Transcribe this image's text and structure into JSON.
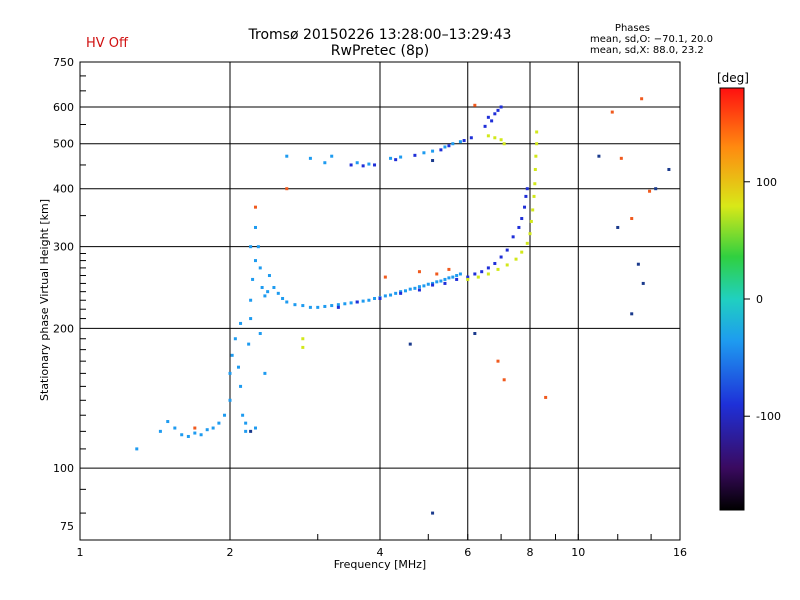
{
  "status": {
    "text": "HV Off",
    "color": "#d01010"
  },
  "header": {
    "title_line1": "Tromsø 20150226 13:28:00–13:29:43",
    "title_line2": "RwPretec (8p)"
  },
  "phases_box": {
    "heading": "Phases",
    "line_o": "mean, sd,O: −70.1, 20.0",
    "line_x": "mean, sd,X:  88.0, 23.2"
  },
  "chart_data": {
    "type": "scatter",
    "xlabel": "Frequency [MHz]",
    "ylabel": "Stationary phase Virtual Height [km]",
    "x_scale": "log",
    "y_scale": "log",
    "xlim": [
      1,
      16
    ],
    "ylim": [
      70,
      750
    ],
    "x_ticks": [
      1,
      2,
      4,
      6,
      8,
      10,
      16
    ],
    "x_tick_labels": [
      "1",
      "2",
      "4",
      "6",
      "8",
      "10",
      "16"
    ],
    "y_ticks": [
      75,
      100,
      200,
      300,
      400,
      500,
      600,
      750
    ],
    "y_tick_labels": [
      "75",
      "100",
      "200",
      "300",
      "400",
      "500",
      "600",
      "750"
    ],
    "grid": true,
    "colorbar": {
      "label": "[deg]",
      "range": [
        -180,
        180
      ],
      "ticks": [
        100,
        0,
        -100
      ],
      "tick_labels": [
        "100",
        "0",
        "-100"
      ]
    },
    "series": [
      {
        "color": "#1e9bf0",
        "points": [
          [
            1.45,
            120
          ],
          [
            1.5,
            126
          ],
          [
            1.55,
            122
          ],
          [
            1.6,
            118
          ],
          [
            1.65,
            117
          ],
          [
            1.7,
            119
          ],
          [
            1.75,
            118
          ],
          [
            1.8,
            121
          ],
          [
            1.85,
            122
          ],
          [
            1.9,
            125
          ],
          [
            1.95,
            130
          ],
          [
            2.0,
            140
          ],
          [
            2.0,
            160
          ],
          [
            2.02,
            175
          ],
          [
            2.05,
            190
          ],
          [
            2.08,
            165
          ],
          [
            2.1,
            150
          ],
          [
            2.12,
            130
          ],
          [
            2.15,
            120
          ],
          [
            2.18,
            185
          ],
          [
            2.2,
            210
          ],
          [
            2.2,
            230
          ],
          [
            2.22,
            255
          ],
          [
            2.25,
            280
          ],
          [
            2.28,
            300
          ],
          [
            2.3,
            270
          ],
          [
            2.32,
            245
          ],
          [
            2.35,
            235
          ],
          [
            2.38,
            240
          ],
          [
            2.4,
            260
          ],
          [
            2.45,
            245
          ],
          [
            2.5,
            238
          ],
          [
            2.55,
            232
          ],
          [
            2.6,
            228
          ],
          [
            2.7,
            225
          ],
          [
            2.8,
            224
          ],
          [
            2.9,
            222
          ],
          [
            3.0,
            222
          ],
          [
            3.1,
            223
          ],
          [
            3.2,
            224
          ],
          [
            3.3,
            225
          ],
          [
            3.4,
            226
          ],
          [
            3.5,
            227
          ],
          [
            3.6,
            228
          ],
          [
            3.7,
            229
          ],
          [
            3.8,
            230
          ],
          [
            3.9,
            232
          ],
          [
            4.0,
            233
          ],
          [
            4.1,
            235
          ],
          [
            4.2,
            236
          ],
          [
            4.3,
            238
          ],
          [
            4.4,
            240
          ],
          [
            4.5,
            241
          ],
          [
            4.6,
            243
          ],
          [
            4.7,
            244
          ],
          [
            4.8,
            246
          ],
          [
            4.9,
            247
          ],
          [
            5.0,
            249
          ],
          [
            5.1,
            250
          ],
          [
            5.2,
            252
          ],
          [
            5.3,
            253
          ],
          [
            5.4,
            255
          ],
          [
            5.5,
            257
          ],
          [
            5.6,
            258
          ],
          [
            5.7,
            260
          ],
          [
            5.8,
            262
          ],
          [
            2.15,
            125
          ],
          [
            2.25,
            122
          ],
          [
            2.3,
            195
          ],
          [
            2.35,
            160
          ],
          [
            2.2,
            300
          ],
          [
            2.25,
            330
          ],
          [
            2.1,
            205
          ],
          [
            1.3,
            110
          ],
          [
            3.2,
            470
          ],
          [
            3.6,
            455
          ],
          [
            3.8,
            452
          ],
          [
            4.2,
            465
          ],
          [
            4.4,
            468
          ],
          [
            4.9,
            478
          ],
          [
            5.1,
            482
          ],
          [
            5.4,
            492
          ],
          [
            5.6,
            500
          ],
          [
            5.8,
            505
          ],
          [
            2.6,
            470
          ],
          [
            2.9,
            465
          ],
          [
            3.1,
            455
          ]
        ]
      },
      {
        "color": "#1f2fd8",
        "points": [
          [
            3.3,
            222
          ],
          [
            3.6,
            228
          ],
          [
            4.0,
            232
          ],
          [
            4.4,
            238
          ],
          [
            4.8,
            242
          ],
          [
            5.1,
            248
          ],
          [
            5.4,
            250
          ],
          [
            5.7,
            255
          ],
          [
            6.0,
            258
          ],
          [
            6.2,
            262
          ],
          [
            6.4,
            265
          ],
          [
            6.6,
            270
          ],
          [
            6.8,
            276
          ],
          [
            7.0,
            285
          ],
          [
            7.2,
            295
          ],
          [
            7.4,
            315
          ],
          [
            7.6,
            330
          ],
          [
            7.7,
            345
          ],
          [
            7.8,
            365
          ],
          [
            7.85,
            385
          ],
          [
            7.9,
            400
          ],
          [
            6.6,
            570
          ],
          [
            6.8,
            580
          ],
          [
            6.9,
            590
          ],
          [
            7.0,
            600
          ],
          [
            6.7,
            560
          ],
          [
            6.5,
            545
          ],
          [
            3.5,
            450
          ],
          [
            3.7,
            448
          ],
          [
            3.9,
            450
          ],
          [
            4.3,
            462
          ],
          [
            4.7,
            472
          ],
          [
            5.3,
            485
          ],
          [
            5.5,
            495
          ],
          [
            5.9,
            508
          ],
          [
            6.1,
            515
          ]
        ]
      },
      {
        "color": "#d2e81a",
        "points": [
          [
            6.0,
            255
          ],
          [
            6.3,
            258
          ],
          [
            6.6,
            262
          ],
          [
            6.9,
            268
          ],
          [
            7.2,
            274
          ],
          [
            7.5,
            282
          ],
          [
            7.7,
            292
          ],
          [
            7.9,
            305
          ],
          [
            8.0,
            320
          ],
          [
            8.05,
            340
          ],
          [
            8.1,
            360
          ],
          [
            8.15,
            385
          ],
          [
            8.18,
            410
          ],
          [
            8.2,
            440
          ],
          [
            8.22,
            470
          ],
          [
            8.25,
            500
          ],
          [
            8.25,
            530
          ],
          [
            6.6,
            520
          ],
          [
            6.8,
            515
          ],
          [
            7.0,
            510
          ],
          [
            7.1,
            500
          ],
          [
            2.8,
            190
          ],
          [
            2.8,
            182
          ]
        ]
      },
      {
        "color": "#f05a1e",
        "points": [
          [
            4.8,
            265
          ],
          [
            5.2,
            262
          ],
          [
            5.5,
            268
          ],
          [
            6.2,
            605
          ],
          [
            6.9,
            170
          ],
          [
            7.1,
            155
          ],
          [
            8.6,
            142
          ],
          [
            11.7,
            585
          ],
          [
            12.2,
            465
          ],
          [
            12.8,
            345
          ],
          [
            13.4,
            625
          ],
          [
            13.9,
            395
          ],
          [
            2.25,
            365
          ],
          [
            1.7,
            122
          ],
          [
            2.6,
            400
          ],
          [
            4.1,
            258
          ]
        ]
      },
      {
        "color": "#1a3a8c",
        "points": [
          [
            5.1,
            80
          ],
          [
            5.1,
            460
          ],
          [
            11.0,
            470
          ],
          [
            12.0,
            330
          ],
          [
            12.8,
            215
          ],
          [
            13.2,
            275
          ],
          [
            13.5,
            250
          ],
          [
            14.3,
            400
          ],
          [
            15.2,
            440
          ],
          [
            6.2,
            195
          ],
          [
            4.6,
            185
          ],
          [
            2.2,
            120
          ]
        ]
      }
    ]
  }
}
